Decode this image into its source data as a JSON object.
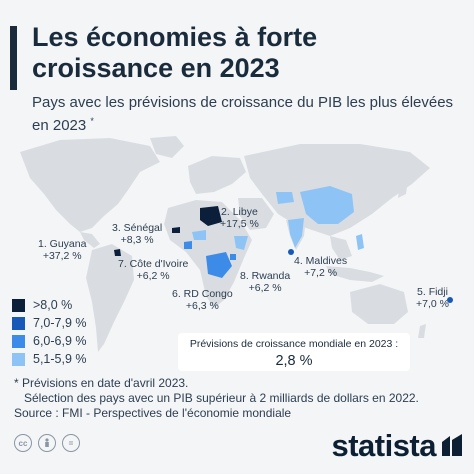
{
  "header": {
    "title": "Les économies à forte croissance en 2023",
    "subtitle": "Pays avec les prévisions de croissance du PIB les plus élevées en 2023",
    "subtitle_mark": "*"
  },
  "countries": [
    {
      "id": "guyana",
      "name": "1. Guyana",
      "value": "+37,2 %"
    },
    {
      "id": "libye",
      "name": "2. Libye",
      "value": "+17,5 %"
    },
    {
      "id": "senegal",
      "name": "3. Sénégal",
      "value": "+8,3 %"
    },
    {
      "id": "maldives",
      "name": "4. Maldives",
      "value": "+7,2 %"
    },
    {
      "id": "fidji",
      "name": "5. Fidji",
      "value": "+7,0 %"
    },
    {
      "id": "rdcongo",
      "name": "6. RD Congo",
      "value": "+6,3 %"
    },
    {
      "id": "cotedivoire",
      "name": "7. Côte d'Ivoire",
      "value": "+6,2 %"
    },
    {
      "id": "rwanda",
      "name": "8. Rwanda",
      "value": "+6,2 %"
    }
  ],
  "legend": [
    {
      "label": ">8,0 %",
      "color": "#0b1f3a"
    },
    {
      "label": "7,0-7,9 %",
      "color": "#1659b8"
    },
    {
      "label": "6,0-6,9 %",
      "color": "#3d8be8"
    },
    {
      "label": "5,1-5,9 %",
      "color": "#8ec4f5"
    }
  ],
  "colors": {
    "land": "#d9dde2",
    "background": "#f4f5f6"
  },
  "world_growth": {
    "label": "Prévisions de croissance mondiale en 2023 :",
    "value": "2,8 %"
  },
  "notes": {
    "line1": "* Prévisions en date d'avril 2023.",
    "line2": "Sélection des pays avec un PIB supérieur à 2 milliards de dollars en 2022.",
    "line3": "Source : FMI - Perspectives de l'économie mondiale"
  },
  "footer": {
    "brand": "statista",
    "icons": [
      "cc-icon",
      "by-icon",
      "nd-icon"
    ]
  }
}
